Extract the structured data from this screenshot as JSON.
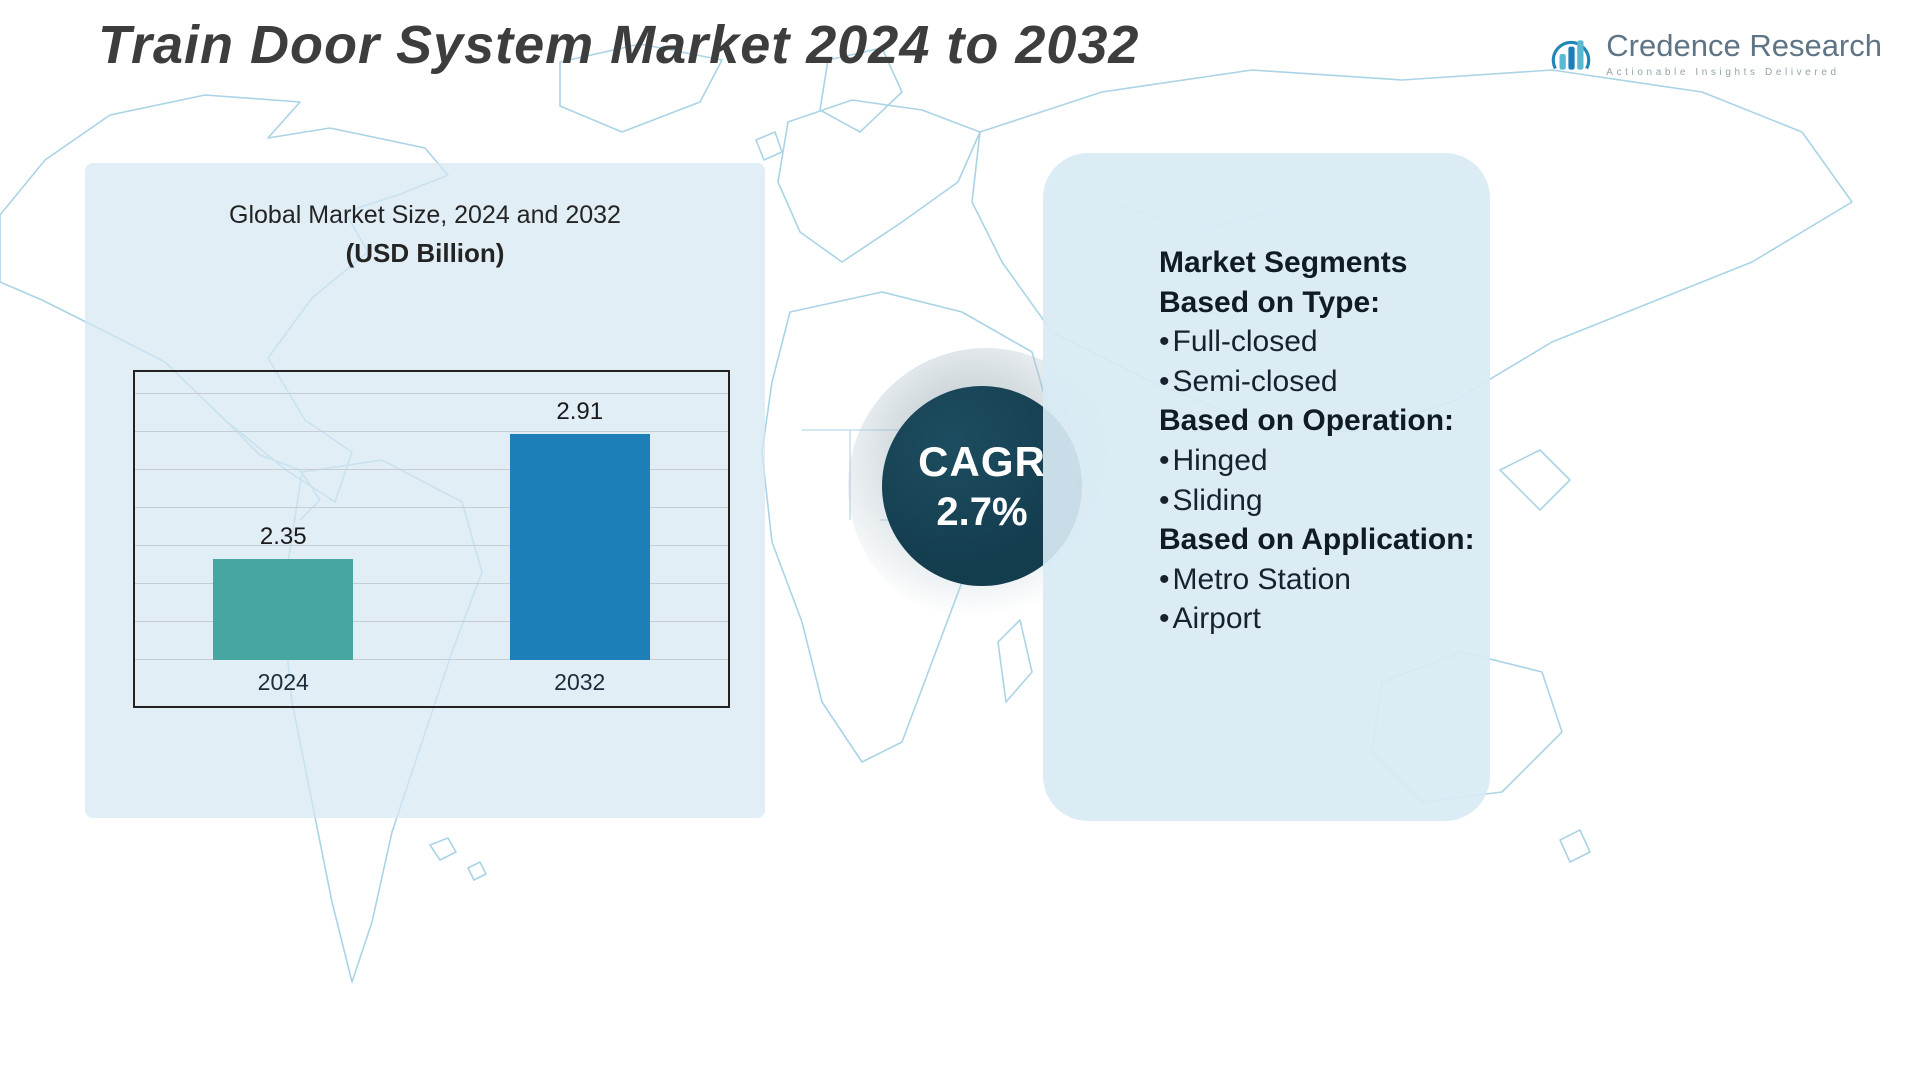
{
  "page": {
    "title": "Train Door System Market 2024 to 2032"
  },
  "logo": {
    "name": "Credence Research",
    "tagline": "Actionable Insights Delivered"
  },
  "chart_data": {
    "type": "bar",
    "title": "Global Market Size, 2024 and 2032",
    "subtitle": "(USD Billion)",
    "categories": [
      "2024",
      "2032"
    ],
    "values": [
      2.35,
      2.91
    ],
    "bar_colors": [
      "#47a5a2",
      "#1e7eb7"
    ],
    "xlabel": "",
    "ylabel": "",
    "ylim": [
      1.9,
      3.1
    ],
    "grid": true,
    "legend": false,
    "value_labels": true
  },
  "cagr": {
    "label": "CAGR",
    "value": "2.7%"
  },
  "segments": {
    "title": "Market Segments",
    "groups": [
      {
        "heading": "Based on Type:",
        "items": [
          "Full-closed",
          "Semi-closed"
        ]
      },
      {
        "heading": "Based on Operation:",
        "items": [
          "Hinged",
          "Sliding"
        ]
      },
      {
        "heading": "Based on Application:",
        "items": [
          "Metro Station",
          "Airport"
        ]
      }
    ]
  },
  "colors": {
    "panel_blue": "#d8eaf4",
    "map_line": "#aad4e6",
    "cagr_circle": "#133c4d",
    "bar_teal": "#47a5a2",
    "bar_blue": "#1e7eb7",
    "title_gray": "#3d3d3d"
  }
}
